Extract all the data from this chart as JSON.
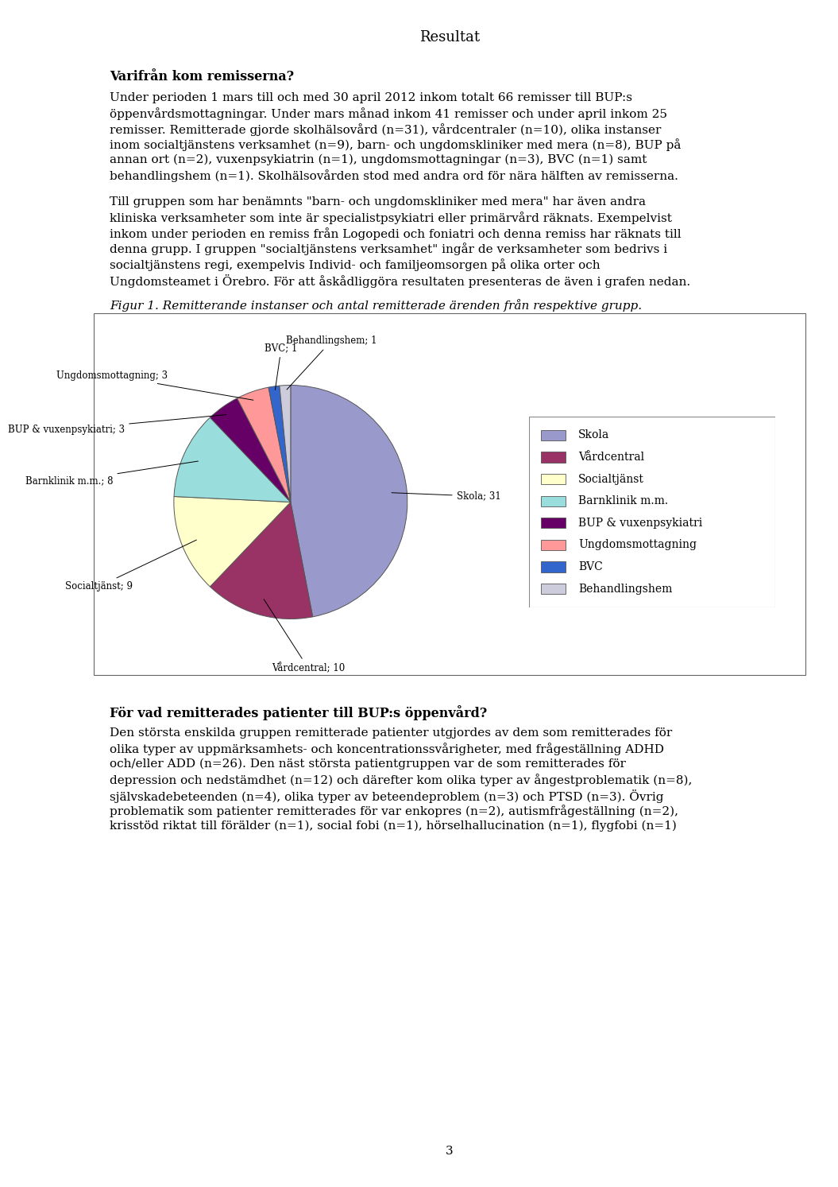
{
  "title": "Resultat",
  "heading1": "Varifrån kom remisserna?",
  "para1_lines": [
    "Under perioden 1 mars till och med 30 april 2012 inkom totalt 66 remisser till BUP:s",
    "öppenvårdsmottagningar. Under mars månad inkom 41 remisser och under april inkom 25",
    "remisser. Remitterade gjorde skolhälsovård (n=31), vårdcentraler (n=10), olika instanser",
    "inom socialtjänstens verksamhet (n=9), barn- och ungdomskliniker med mera (n=8), BUP på",
    "annan ort (n=2), vuxenpsykiatrin (n=1), ungdomsmottagningar (n=3), BVC (n=1) samt",
    "behandlingshem (n=1). Skolhälsovården stod med andra ord för nära hälften av remisserna."
  ],
  "para2_lines": [
    "Till gruppen som har benämnts \"barn- och ungdomskliniker med mera\" har även andra",
    "kliniska verksamheter som inte är specialistpsykiatri eller primärvård räknats. Exempelvist",
    "inkom under perioden en remiss från Logopedi och foniatri och denna remiss har räknats till",
    "denna grupp. I gruppen \"socialtjänstens verksamhet\" ingår de verksamheter som bedrivs i",
    "socialtjänstens regi, exempelvis Individ- och familjeomsorgen på olika orter och",
    "Ungdomsteamet i Örebro. För att åskådliggöra resultaten presenteras de även i grafen nedan."
  ],
  "fig_caption": "Figur 1. Remitterande instanser och antal remitterade ärenden från respektive grupp.",
  "heading2": "För vad remitterades patienter till BUP:s öppenvård?",
  "para3_lines": [
    "Den största enskilda gruppen remitterade patienter utgjordes av dem som remitterades för",
    "olika typer av uppmärksamhets- och koncentrationssvårigheter, med frågeställning ADHD",
    "och/eller ADD (n=26). Den näst största patientgruppen var de som remitterades för",
    "depression och nedstämdhet (n=12) och därefter kom olika typer av ångestproblematik (n=8),",
    "självskadebeteenden (n=4), olika typer av beteendeproblem (n=3) och PTSD (n=3). Övrig",
    "problematik som patienter remitterades för var enkopres (n=2), autismfrågeställning (n=2),",
    "krisstöd riktat till förälder (n=1), social fobi (n=1), hörselhallucination (n=1), flygfobi (n=1)"
  ],
  "page_number": "3",
  "pie_labels": [
    "Skola",
    "Vårdcentral",
    "Socialtjänst",
    "Barnklinik m.m.",
    "BUP & vuxenpsykiatri",
    "Ungdomsmottagning",
    "BVC",
    "Behandlingshem"
  ],
  "pie_values": [
    31,
    10,
    9,
    8,
    3,
    3,
    1,
    1
  ],
  "pie_colors": [
    "#9999cc",
    "#993366",
    "#ffffcc",
    "#99dddd",
    "#660066",
    "#ff9999",
    "#3366cc",
    "#ccccdd"
  ],
  "pie_label_display": [
    "Skola; 31",
    "Vårdcentral; 10",
    "Socialtjänst; 9",
    "Barnklinik m.m.; 8",
    "BUP & vuxenpsykiatri; 3",
    "Ungdomsmottagning; 3",
    "BVC; 1",
    "Behandlingshem; 1"
  ],
  "background_color": "#ffffff"
}
